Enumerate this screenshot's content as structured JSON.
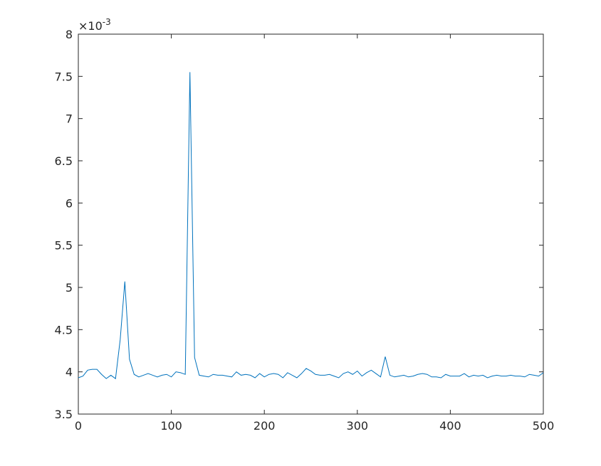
{
  "chart_data": {
    "type": "line",
    "exponent_label": {
      "base": "×10",
      "power": "-3"
    },
    "x": [
      0,
      5,
      10,
      15,
      20,
      25,
      30,
      35,
      40,
      45,
      50,
      55,
      60,
      65,
      70,
      75,
      80,
      85,
      90,
      95,
      100,
      105,
      110,
      115,
      120,
      125,
      130,
      135,
      140,
      145,
      150,
      155,
      160,
      165,
      170,
      175,
      180,
      185,
      190,
      195,
      200,
      205,
      210,
      215,
      220,
      225,
      230,
      235,
      240,
      245,
      250,
      255,
      260,
      265,
      270,
      275,
      280,
      285,
      290,
      295,
      300,
      305,
      310,
      315,
      320,
      325,
      330,
      335,
      340,
      345,
      350,
      355,
      360,
      365,
      370,
      375,
      380,
      385,
      390,
      395,
      400,
      405,
      410,
      415,
      420,
      425,
      430,
      435,
      440,
      445,
      450,
      455,
      460,
      465,
      470,
      475,
      480,
      485,
      490,
      495,
      500
    ],
    "series": [
      {
        "color": "#0072bd",
        "values": [
          3.93,
          3.95,
          4.02,
          4.03,
          4.03,
          3.97,
          3.92,
          3.96,
          3.92,
          4.38,
          5.07,
          4.15,
          3.97,
          3.94,
          3.96,
          3.98,
          3.96,
          3.94,
          3.96,
          3.97,
          3.94,
          4.0,
          3.99,
          3.97,
          7.55,
          4.17,
          3.96,
          3.95,
          3.94,
          3.97,
          3.96,
          3.96,
          3.95,
          3.94,
          4.0,
          3.96,
          3.97,
          3.96,
          3.93,
          3.98,
          3.94,
          3.97,
          3.98,
          3.97,
          3.93,
          3.99,
          3.96,
          3.93,
          3.98,
          4.04,
          4.01,
          3.97,
          3.96,
          3.96,
          3.97,
          3.95,
          3.93,
          3.98,
          4.0,
          3.97,
          4.01,
          3.95,
          3.99,
          4.02,
          3.98,
          3.94,
          4.18,
          3.96,
          3.94,
          3.95,
          3.96,
          3.94,
          3.95,
          3.97,
          3.98,
          3.97,
          3.94,
          3.94,
          3.93,
          3.97,
          3.95,
          3.95,
          3.95,
          3.98,
          3.94,
          3.96,
          3.95,
          3.96,
          3.93,
          3.95,
          3.96,
          3.95,
          3.95,
          3.96,
          3.95,
          3.95,
          3.94,
          3.97,
          3.96,
          3.95,
          3.99
        ]
      }
    ],
    "xlim": [
      0,
      500
    ],
    "xticks": [
      0,
      100,
      200,
      300,
      400,
      500
    ],
    "ylim": [
      3.5,
      8
    ],
    "yticks": [
      3.5,
      4,
      4.5,
      5,
      5.5,
      6,
      6.5,
      7,
      7.5,
      8
    ],
    "grid": false
  }
}
